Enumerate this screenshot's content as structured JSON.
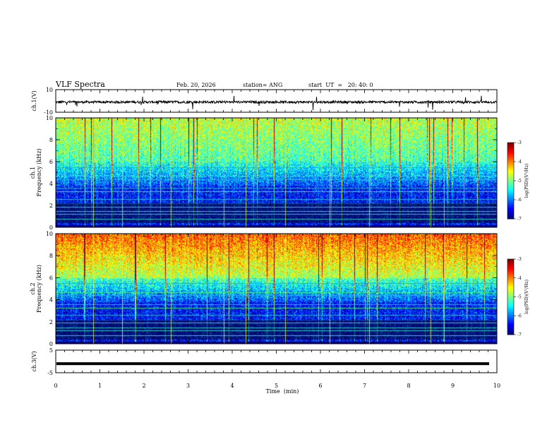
{
  "header": {
    "title": "VLF Spectra",
    "date": "Feb. 20, 2026",
    "station": "station= ANG",
    "start": "start  UT  =   20: 40: 0"
  },
  "colors": {
    "background": "#ffffff",
    "axis": "#000000",
    "waveform": "#000000"
  },
  "chart_data": [
    {
      "type": "line",
      "title": "ch.1 waveform",
      "ylabel": "ch.1(V)",
      "xlim": [
        0,
        10
      ],
      "ylim": [
        -10,
        10
      ],
      "yticks": [
        "10",
        "-10"
      ]
    },
    {
      "type": "heatmap",
      "title": "ch.1 spectrogram",
      "ylabel": "ch.1 Frequency (kHz)",
      "ylabel_lines": [
        "ch.1",
        "Frequency (kHz)"
      ],
      "xlim": [
        0,
        10
      ],
      "ylim": [
        0,
        10
      ],
      "yticks": [
        "0",
        "2",
        "4",
        "6",
        "8",
        "10"
      ],
      "colorbar": {
        "label": "log(PSD)(V²/Hz)",
        "range": [
          -7,
          -3
        ],
        "ticks": [
          "-3",
          "-4",
          "-5",
          "-6",
          "-7"
        ]
      }
    },
    {
      "type": "heatmap",
      "title": "ch.2 spectrogram",
      "ylabel": "ch.2 Frequency (kHz)",
      "ylabel_lines": [
        "ch.2",
        "Frequency (kHz)"
      ],
      "xlim": [
        0,
        10
      ],
      "ylim": [
        0,
        10
      ],
      "yticks": [
        "0",
        "2",
        "4",
        "6",
        "8",
        "10"
      ],
      "colorbar": {
        "label": "log(PSD)(V²/Hz)",
        "range": [
          -7,
          -3
        ],
        "ticks": [
          "-3",
          "-4",
          "-5",
          "-6",
          "-7"
        ]
      }
    },
    {
      "type": "line",
      "title": "ch.3 waveform",
      "ylabel": "ch.3(V)",
      "xlim": [
        0,
        10
      ],
      "ylim": [
        -5,
        5
      ],
      "yticks": [
        "5",
        "-5"
      ],
      "level": -1
    }
  ],
  "x_axis": {
    "label": "Time  (min)",
    "ticks": [
      "0",
      "1",
      "2",
      "3",
      "4",
      "5",
      "6",
      "7",
      "8",
      "9",
      "10"
    ]
  }
}
